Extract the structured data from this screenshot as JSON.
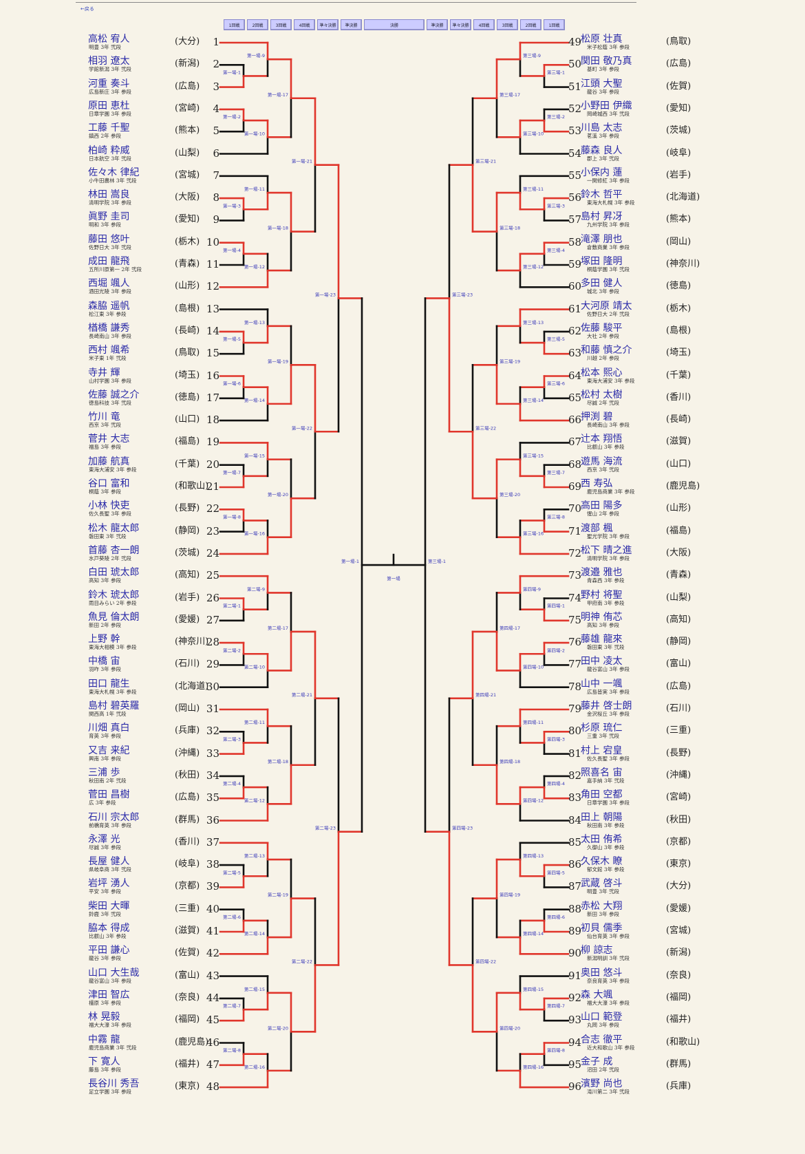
{
  "header": {
    "back_link": "←戻る",
    "rounds": [
      "1回戦",
      "2回戦",
      "3回戦",
      "4回戦",
      "準々決勝",
      "準決勝",
      "決勝",
      "準決勝",
      "準々決勝",
      "4回戦",
      "3回戦",
      "2回戦",
      "1回戦"
    ]
  },
  "colors": {
    "win_line": "#e0352b",
    "line": "#111111",
    "name": "#2a2aa8",
    "label": "#3a3ab8"
  },
  "players": [
    {
      "seed": "1",
      "name": "高松 宥人",
      "school": "明豊 3年 弐段",
      "pref": "(大分)"
    },
    {
      "seed": "2",
      "name": "相羽 遼太",
      "school": "学館新潟 3年 弐段",
      "pref": "(新潟)"
    },
    {
      "seed": "3",
      "name": "河重 奏斗",
      "school": "広島新庄 3年 参段",
      "pref": "(広島)"
    },
    {
      "seed": "4",
      "name": "原田 恵杜",
      "school": "日章学園 3年 参段",
      "pref": "(宮崎)"
    },
    {
      "seed": "5",
      "name": "工藤 千聖",
      "school": "鎮西 2年 参段",
      "pref": "(熊本)"
    },
    {
      "seed": "6",
      "name": "柏崎 粋威",
      "school": "日本航空 3年 弐段",
      "pref": "(山梨)"
    },
    {
      "seed": "7",
      "name": "佐々木 律紀",
      "school": "小牛田農林 3年 弐段",
      "pref": "(宮城)"
    },
    {
      "seed": "8",
      "name": "林田 嵩良",
      "school": "清明学院 3年 参段",
      "pref": "(大阪)"
    },
    {
      "seed": "9",
      "name": "眞野 圭司",
      "school": "明和 3年 参段",
      "pref": "(愛知)"
    },
    {
      "seed": "10",
      "name": "藤田 悠叶",
      "school": "佐野日大 3年 弐段",
      "pref": "(栃木)"
    },
    {
      "seed": "11",
      "name": "成田 龍飛",
      "school": "五所川原第一 2年 弐段",
      "pref": "(青森)"
    },
    {
      "seed": "12",
      "name": "西堀 颯人",
      "school": "酒田光陵 3年 参段",
      "pref": "(山形)"
    },
    {
      "seed": "13",
      "name": "森脇 遥帆",
      "school": "松江東 3年 参段",
      "pref": "(島根)"
    },
    {
      "seed": "14",
      "name": "楢橋 謙秀",
      "school": "長崎南山 3年 参段",
      "pref": "(長崎)"
    },
    {
      "seed": "15",
      "name": "西村 颯希",
      "school": "米子東 1年 弐段",
      "pref": "(鳥取)"
    },
    {
      "seed": "16",
      "name": "寺井 輝",
      "school": "山村学園 3年 参段",
      "pref": "(埼玉)"
    },
    {
      "seed": "17",
      "name": "佐藤 誠之介",
      "school": "徳島科技 3年 弐段",
      "pref": "(徳島)"
    },
    {
      "seed": "18",
      "name": "竹川 竜",
      "school": "西京 3年 弐段",
      "pref": "(山口)"
    },
    {
      "seed": "19",
      "name": "菅井 大志",
      "school": "福島 3年 参段",
      "pref": "(福島)"
    },
    {
      "seed": "20",
      "name": "加藤 航真",
      "school": "東海大浦安 3年 参段",
      "pref": "(千葉)"
    },
    {
      "seed": "21",
      "name": "谷口 富和",
      "school": "桐蔭 3年 参段",
      "pref": "(和歌山)"
    },
    {
      "seed": "22",
      "name": "小林 快吏",
      "school": "佐久長聖 3年 参段",
      "pref": "(長野)"
    },
    {
      "seed": "23",
      "name": "松木 龍太郎",
      "school": "磐田東 3年 弐段",
      "pref": "(静岡)"
    },
    {
      "seed": "24",
      "name": "首藤 杏一朗",
      "school": "水戸葵陵 2年 弐段",
      "pref": "(茨城)"
    },
    {
      "seed": "25",
      "name": "白田 琥太郎",
      "school": "高知 3年 参段",
      "pref": "(高知)"
    },
    {
      "seed": "26",
      "name": "鈴木 琥太郎",
      "school": "雨目みらい 2年 参段",
      "pref": "(岩手)"
    },
    {
      "seed": "27",
      "name": "魚見 倫太朗",
      "school": "新田 2年 参段",
      "pref": "(愛媛)"
    },
    {
      "seed": "28",
      "name": "上野 幹",
      "school": "東海大相模 3年 参段",
      "pref": "(神奈川)"
    },
    {
      "seed": "29",
      "name": "中橋 宙",
      "school": "羽咋 3年 参段",
      "pref": "(石川)"
    },
    {
      "seed": "30",
      "name": "田口 龍生",
      "school": "東海大札幌 3年 参段",
      "pref": "(北海道)"
    },
    {
      "seed": "31",
      "name": "島村 碧英羅",
      "school": "関西高 1年 弐段",
      "pref": "(岡山)"
    },
    {
      "seed": "32",
      "name": "川畑 真白",
      "school": "育英 3年 参段",
      "pref": "(兵庫)"
    },
    {
      "seed": "33",
      "name": "又吉 来紀",
      "school": "興南 3年 参段",
      "pref": "(沖縄)"
    },
    {
      "seed": "34",
      "name": "三浦 歩",
      "school": "秋田南 2年 弐段",
      "pref": "(秋田)"
    },
    {
      "seed": "35",
      "name": "菅田 昌樹",
      "school": "広 3年 参段",
      "pref": "(広島)"
    },
    {
      "seed": "36",
      "name": "石川 宗太郎",
      "school": "前橋育英 3年 参段",
      "pref": "(群馬)"
    },
    {
      "seed": "37",
      "name": "永澤 光",
      "school": "尽誠 3年 参段",
      "pref": "(香川)"
    },
    {
      "seed": "38",
      "name": "長屋 健人",
      "school": "県岐阜商 3年 弐段",
      "pref": "(岐阜)"
    },
    {
      "seed": "39",
      "name": "岩坪 湧人",
      "school": "平安 3年 参段",
      "pref": "(京都)"
    },
    {
      "seed": "40",
      "name": "柴田 大暉",
      "school": "鈴鹿 3年 弐段",
      "pref": "(三重)"
    },
    {
      "seed": "41",
      "name": "脇本 得成",
      "school": "比叡山 3年 参段",
      "pref": "(滋賀)"
    },
    {
      "seed": "42",
      "name": "平田 謙心",
      "school": "龍谷 3年 参段",
      "pref": "(佐賀)"
    },
    {
      "seed": "43",
      "name": "山口 大生哉",
      "school": "龍谷富山 3年 参段",
      "pref": "(富山)"
    },
    {
      "seed": "44",
      "name": "津田 智広",
      "school": "橿原 3年 参段",
      "pref": "(奈良)"
    },
    {
      "seed": "45",
      "name": "林 晃毅",
      "school": "福大大濠 3年 参段",
      "pref": "(福岡)"
    },
    {
      "seed": "46",
      "name": "中霧 龍",
      "school": "鹿児島商業 3年 弐段",
      "pref": "(鹿児島)"
    },
    {
      "seed": "47",
      "name": "下 寛人",
      "school": "藤島 3年 参段",
      "pref": "(福井)"
    },
    {
      "seed": "48",
      "name": "長谷川 秀吾",
      "school": "足立学園 3年 参段",
      "pref": "(東京)"
    },
    {
      "seed": "49",
      "name": "松原 壮真",
      "school": "米子松蔭 3年 参段",
      "pref": "(鳥取)"
    },
    {
      "seed": "50",
      "name": "関田 敬乃真",
      "school": "基町 3年 参段",
      "pref": "(広島)"
    },
    {
      "seed": "51",
      "name": "江頭 大聖",
      "school": "龍谷 3年 参段",
      "pref": "(佐賀)"
    },
    {
      "seed": "52",
      "name": "小野田 伊織",
      "school": "岡崎城西 3年 弐段",
      "pref": "(愛知)"
    },
    {
      "seed": "53",
      "name": "川島 太志",
      "school": "茗溪 3年 参段",
      "pref": "(茨城)"
    },
    {
      "seed": "54",
      "name": "藤森 良人",
      "school": "郡上 3年 弐段",
      "pref": "(岐阜)"
    },
    {
      "seed": "55",
      "name": "小保内 蓮",
      "school": "一関修紅 3年 参段",
      "pref": "(岩手)"
    },
    {
      "seed": "56",
      "name": "鈴木 哲平",
      "school": "東海大札幌 3年 参段",
      "pref": "(北海道)"
    },
    {
      "seed": "57",
      "name": "島村 昇冴",
      "school": "九州学院 3年 参段",
      "pref": "(熊本)"
    },
    {
      "seed": "58",
      "name": "滝澤 朋也",
      "school": "倉敷商業 3年 参段",
      "pref": "(岡山)"
    },
    {
      "seed": "59",
      "name": "塚田 隆明",
      "school": "桐蔭学園 3年 弐段",
      "pref": "(神奈川)"
    },
    {
      "seed": "60",
      "name": "多田 健人",
      "school": "城北 3年 参段",
      "pref": "(徳島)"
    },
    {
      "seed": "61",
      "name": "大河原 靖太",
      "school": "佐野日大 2年 弐段",
      "pref": "(栃木)"
    },
    {
      "seed": "62",
      "name": "佐藤 駿平",
      "school": "大社 2年 参段",
      "pref": "(島根)"
    },
    {
      "seed": "63",
      "name": "和藤 慎之介",
      "school": "川越 2年 参段",
      "pref": "(埼玉)"
    },
    {
      "seed": "64",
      "name": "松本 熙心",
      "school": "東海大浦安 3年 参段",
      "pref": "(千葉)"
    },
    {
      "seed": "65",
      "name": "松村 太樹",
      "school": "尽誠 2年 弐段",
      "pref": "(香川)"
    },
    {
      "seed": "66",
      "name": "押渕 碧",
      "school": "長崎南山 3年 参段",
      "pref": "(長崎)"
    },
    {
      "seed": "67",
      "name": "辻本 翔悟",
      "school": "比叡山 3年 参段",
      "pref": "(滋賀)"
    },
    {
      "seed": "68",
      "name": "遊馬 海流",
      "school": "西京 3年 弐段",
      "pref": "(山口)"
    },
    {
      "seed": "69",
      "name": "西 寿弘",
      "school": "鹿児島商業 3年 参段",
      "pref": "(鹿児島)"
    },
    {
      "seed": "70",
      "name": "高田 陽多",
      "school": "惺山 2年 参段",
      "pref": "(山形)"
    },
    {
      "seed": "71",
      "name": "渡部 楓",
      "school": "聖光学院 3年 参段",
      "pref": "(福島)"
    },
    {
      "seed": "72",
      "name": "松下 晴之進",
      "school": "清明学院 3年 参段",
      "pref": "(大阪)"
    },
    {
      "seed": "73",
      "name": "渡邉 雅也",
      "school": "青森西 3年 参段",
      "pref": "(青森)"
    },
    {
      "seed": "74",
      "name": "野村 将聖",
      "school": "甲府南 3年 参段",
      "pref": "(山梨)"
    },
    {
      "seed": "75",
      "name": "明神 侑芯",
      "school": "高知 3年 参段",
      "pref": "(高知)"
    },
    {
      "seed": "76",
      "name": "藤雄 龍來",
      "school": "磐田東 3年 弐段",
      "pref": "(静岡)"
    },
    {
      "seed": "77",
      "name": "田中 凌太",
      "school": "龍谷富山 3年 参段",
      "pref": "(富山)"
    },
    {
      "seed": "78",
      "name": "山中 一颯",
      "school": "広島皆実 3年 参段",
      "pref": "(広島)"
    },
    {
      "seed": "79",
      "name": "藤井 啓士朗",
      "school": "金沢桜丘 3年 参段",
      "pref": "(石川)"
    },
    {
      "seed": "80",
      "name": "杉原 琉仁",
      "school": "三重 3年 弐段",
      "pref": "(三重)"
    },
    {
      "seed": "81",
      "name": "村上 宕皇",
      "school": "佐久長聖 3年 参段",
      "pref": "(長野)"
    },
    {
      "seed": "82",
      "name": "照喜名 宙",
      "school": "嘉手納 3年 弐段",
      "pref": "(沖縄)"
    },
    {
      "seed": "83",
      "name": "角田 空都",
      "school": "日章学園 3年 参段",
      "pref": "(宮崎)"
    },
    {
      "seed": "84",
      "name": "田上 朝陽",
      "school": "秋田南 3年 参段",
      "pref": "(秋田)"
    },
    {
      "seed": "85",
      "name": "太田 侑希",
      "school": "久御山 3年 参段",
      "pref": "(京都)"
    },
    {
      "seed": "86",
      "name": "久保木 瞭",
      "school": "郁文館 3年 参段",
      "pref": "(東京)"
    },
    {
      "seed": "87",
      "name": "武蔵 啓斗",
      "school": "明豊 3年 弐段",
      "pref": "(大分)"
    },
    {
      "seed": "88",
      "name": "赤松 大翔",
      "school": "新田 3年 参段",
      "pref": "(愛媛)"
    },
    {
      "seed": "89",
      "name": "初貝 儒季",
      "school": "仙台育英 3年 参段",
      "pref": "(宮城)"
    },
    {
      "seed": "90",
      "name": "柳 諒志",
      "school": "新潟明訓 3年 弐段",
      "pref": "(新潟)"
    },
    {
      "seed": "91",
      "name": "奥田 悠斗",
      "school": "奈良育英 3年 参段",
      "pref": "(奈良)"
    },
    {
      "seed": "92",
      "name": "森 大颯",
      "school": "福大大濠 3年 参段",
      "pref": "(福岡)"
    },
    {
      "seed": "93",
      "name": "山口 範登",
      "school": "丸岡 3年 参段",
      "pref": "(福井)"
    },
    {
      "seed": "94",
      "name": "合志 徹平",
      "school": "近大和歌山 3年 参段",
      "pref": "(和歌山)"
    },
    {
      "seed": "95",
      "name": "金子 成",
      "school": "沼田 2年 弐段",
      "pref": "(群馬)"
    },
    {
      "seed": "96",
      "name": "濱野 尚也",
      "school": "滝川第二 3年 弐段",
      "pref": "(兵庫)"
    }
  ],
  "bracket": {
    "blocks": [
      {
        "court": "第一場",
        "r1": [
          3,
          4,
          8,
          10,
          14,
          16,
          21,
          22
        ],
        "r2": [
          1,
          4,
          8,
          12,
          14,
          16,
          19,
          24
        ],
        "r3": [
          1,
          8,
          16,
          24
        ],
        "r4": [
          1,
          16
        ],
        "qf": 1
      },
      {
        "court": "第二場",
        "r1": [
          26,
          28,
          33,
          35,
          39,
          41,
          45,
          47
        ],
        "r2": [
          25,
          28,
          31,
          36,
          37,
          42,
          45,
          48
        ],
        "r3": [
          28,
          36,
          42,
          45
        ],
        "r4": [
          28,
          45
        ],
        "qf": 45
      },
      {
        "court": "第三場",
        "r1": [
          50,
          53,
          56,
          58,
          63,
          64,
          69,
          71
        ],
        "r2": [
          49,
          53,
          56,
          58,
          61,
          66,
          69,
          72
        ],
        "r3": [
          49,
          56,
          66,
          69
        ],
        "r4": [
          56,
          69
        ],
        "qf": 69
      },
      {
        "court": "第四場",
        "r1": [
          75,
          76,
          80,
          83,
          86,
          89,
          92,
          94
        ],
        "r2": [
          73,
          76,
          79,
          83,
          86,
          90,
          92,
          96
        ],
        "r3": [
          76,
          83,
          86,
          92
        ],
        "r4": [
          76,
          92
        ],
        "qf": 92
      }
    ],
    "semis": [
      {
        "label": "第一場-1",
        "winner": null
      },
      {
        "label": "第三場-1",
        "winner": null
      }
    ],
    "final": {
      "label": "第一場",
      "winner": null
    }
  }
}
